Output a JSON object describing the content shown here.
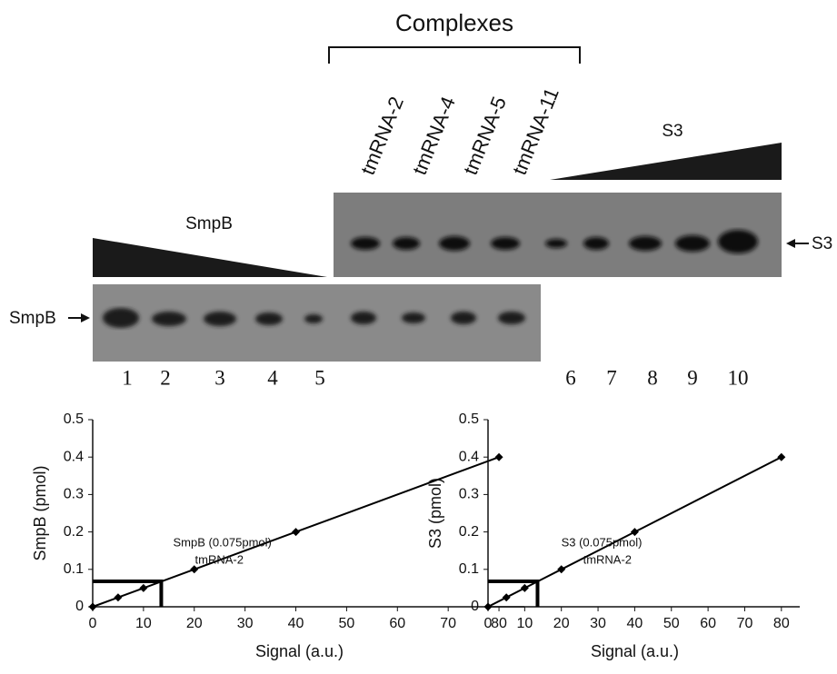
{
  "figure": {
    "complexes_label": "Complexes",
    "complex_lanes": [
      "tmRNA-2",
      "tmRNA-4",
      "tmRNA-5",
      "tmRNA-11"
    ],
    "s3_wedge_label": "S3",
    "smpb_wedge_label": "SmpB",
    "s3_band_label": "S3",
    "smpb_band_label": "SmpB",
    "lane_numbers": [
      1,
      2,
      3,
      4,
      5,
      6,
      7,
      8,
      9,
      10
    ]
  },
  "chart_data": [
    {
      "type": "scatter",
      "x_label": "Signal (a.u.)",
      "y_label": "SmpB (pmol)",
      "x": [
        0,
        5,
        10,
        20,
        40,
        80
      ],
      "values": [
        0,
        0.025,
        0.05,
        0.1,
        0.2,
        0.4
      ],
      "color": "#000000",
      "xlim": [
        0,
        85
      ],
      "ylim": [
        0,
        0.5
      ],
      "xticks": [
        0,
        10,
        20,
        30,
        40,
        50,
        60,
        70,
        80
      ],
      "yticks": [
        0,
        0.1,
        0.2,
        0.3,
        0.4,
        0.5
      ],
      "annotations": [
        "SmpB (0.075pmol)",
        "tmRNA-2"
      ],
      "reference": {
        "x": 13.5,
        "y": 0.068
      },
      "trendline": true
    },
    {
      "type": "scatter",
      "x_label": "Signal (a.u.)",
      "y_label": "S3 (pmol)",
      "x": [
        0,
        5,
        10,
        20,
        40,
        80
      ],
      "values": [
        0,
        0.025,
        0.05,
        0.1,
        0.2,
        0.4
      ],
      "color": "#000000",
      "xlim": [
        0,
        85
      ],
      "ylim": [
        0,
        0.5
      ],
      "xticks": [
        0,
        10,
        20,
        30,
        40,
        50,
        60,
        70,
        80
      ],
      "yticks": [
        0,
        0.1,
        0.2,
        0.3,
        0.4,
        0.5
      ],
      "annotations": [
        "S3 (0.075pmol)",
        "tmRNA-2"
      ],
      "reference": {
        "x": 13.5,
        "y": 0.068
      },
      "trendline": true
    }
  ]
}
